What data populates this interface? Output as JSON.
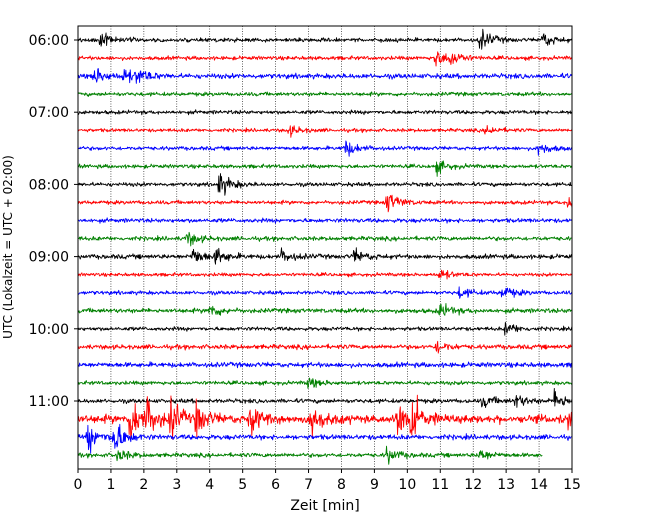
{
  "chart_data": {
    "type": "line",
    "title": "",
    "xlabel": "Zeit  [min]",
    "ylabel": "UTC (Lokalzeit = UTC + 02:00)",
    "xlim": [
      0,
      15
    ],
    "x_ticks": [
      0,
      1,
      2,
      3,
      4,
      5,
      6,
      7,
      8,
      9,
      10,
      11,
      12,
      13,
      14,
      15
    ],
    "x_tick_labels": [
      "0",
      "1",
      "2",
      "3",
      "4",
      "5",
      "6",
      "7",
      "8",
      "9",
      "10",
      "11",
      "12",
      "13",
      "14",
      "15"
    ],
    "y_ticks": [
      {
        "trace_index": 0,
        "label": "06:00"
      },
      {
        "trace_index": 4,
        "label": "07:00"
      },
      {
        "trace_index": 8,
        "label": "08:00"
      },
      {
        "trace_index": 12,
        "label": "09:00"
      },
      {
        "trace_index": 16,
        "label": "10:00"
      },
      {
        "trace_index": 20,
        "label": "11:00"
      }
    ],
    "minutes_per_trace": 15,
    "series_colors": [
      "#000000",
      "#ff0000",
      "#0000ff",
      "#008000"
    ],
    "gridlines": "vertical dotted at each minute",
    "traces": [
      {
        "start": "06:00",
        "color": "#000000",
        "end_min": 15,
        "amplitude": 1.0,
        "events": [
          {
            "t": 0.7,
            "amp": 2.0
          },
          {
            "t": 12.2,
            "amp": 3.2
          },
          {
            "t": 14.1,
            "amp": 2.4
          }
        ]
      },
      {
        "start": "06:15",
        "color": "#ff0000",
        "end_min": 15,
        "amplitude": 1.0,
        "events": [
          {
            "t": 10.8,
            "amp": 3.0
          },
          {
            "t": 11.3,
            "amp": 2.2
          }
        ]
      },
      {
        "start": "06:30",
        "color": "#0000ff",
        "end_min": 15,
        "amplitude": 1.3,
        "events": [
          {
            "t": 0.5,
            "amp": 2.4
          },
          {
            "t": 1.4,
            "amp": 2.0
          },
          {
            "t": 1.8,
            "amp": 2.0
          }
        ]
      },
      {
        "start": "06:45",
        "color": "#008000",
        "end_min": 15,
        "amplitude": 1.0,
        "events": []
      },
      {
        "start": "07:00",
        "color": "#000000",
        "end_min": 15,
        "amplitude": 1.0,
        "events": []
      },
      {
        "start": "07:15",
        "color": "#ff0000",
        "end_min": 15,
        "amplitude": 0.9,
        "events": [
          {
            "t": 6.4,
            "amp": 1.6
          },
          {
            "t": 12.4,
            "amp": 1.4
          }
        ]
      },
      {
        "start": "07:30",
        "color": "#0000ff",
        "end_min": 15,
        "amplitude": 1.0,
        "events": [
          {
            "t": 8.1,
            "amp": 2.6
          },
          {
            "t": 14.0,
            "amp": 2.0
          }
        ]
      },
      {
        "start": "07:45",
        "color": "#008000",
        "end_min": 15,
        "amplitude": 1.0,
        "events": [
          {
            "t": 10.9,
            "amp": 1.8
          }
        ]
      },
      {
        "start": "08:00",
        "color": "#000000",
        "end_min": 15,
        "amplitude": 1.0,
        "events": [
          {
            "t": 4.3,
            "amp": 3.6
          }
        ]
      },
      {
        "start": "08:15",
        "color": "#ff0000",
        "end_min": 15,
        "amplitude": 1.0,
        "events": [
          {
            "t": 9.4,
            "amp": 3.2
          },
          {
            "t": 14.9,
            "amp": 2.6
          }
        ]
      },
      {
        "start": "08:30",
        "color": "#0000ff",
        "end_min": 15,
        "amplitude": 1.1,
        "events": []
      },
      {
        "start": "08:45",
        "color": "#008000",
        "end_min": 15,
        "amplitude": 1.1,
        "events": [
          {
            "t": 3.3,
            "amp": 2.2
          }
        ]
      },
      {
        "start": "09:00",
        "color": "#000000",
        "end_min": 15,
        "amplitude": 1.2,
        "events": [
          {
            "t": 3.5,
            "amp": 2.6
          },
          {
            "t": 4.2,
            "amp": 2.2
          },
          {
            "t": 6.2,
            "amp": 1.8
          },
          {
            "t": 8.4,
            "amp": 2.0
          }
        ]
      },
      {
        "start": "09:15",
        "color": "#ff0000",
        "end_min": 15,
        "amplitude": 0.9,
        "events": [
          {
            "t": 11.0,
            "amp": 1.6
          }
        ]
      },
      {
        "start": "09:30",
        "color": "#0000ff",
        "end_min": 15,
        "amplitude": 1.0,
        "events": [
          {
            "t": 11.6,
            "amp": 1.6
          },
          {
            "t": 12.9,
            "amp": 2.0
          }
        ]
      },
      {
        "start": "09:45",
        "color": "#008000",
        "end_min": 15,
        "amplitude": 1.2,
        "events": [
          {
            "t": 4.0,
            "amp": 2.0
          },
          {
            "t": 11.0,
            "amp": 2.0
          }
        ]
      },
      {
        "start": "10:00",
        "color": "#000000",
        "end_min": 15,
        "amplitude": 1.0,
        "events": [
          {
            "t": 13.0,
            "amp": 2.0
          }
        ]
      },
      {
        "start": "10:15",
        "color": "#ff0000",
        "end_min": 15,
        "amplitude": 1.2,
        "events": [
          {
            "t": 10.9,
            "amp": 1.8
          }
        ]
      },
      {
        "start": "10:30",
        "color": "#0000ff",
        "end_min": 15,
        "amplitude": 1.3,
        "events": []
      },
      {
        "start": "10:45",
        "color": "#008000",
        "end_min": 15,
        "amplitude": 1.0,
        "events": [
          {
            "t": 7.0,
            "amp": 1.6
          }
        ]
      },
      {
        "start": "11:00",
        "color": "#000000",
        "end_min": 15,
        "amplitude": 1.1,
        "events": [
          {
            "t": 12.3,
            "amp": 1.8
          },
          {
            "t": 13.3,
            "amp": 2.0
          },
          {
            "t": 14.5,
            "amp": 3.0
          }
        ]
      },
      {
        "start": "11:15",
        "color": "#ff0000",
        "end_min": 15,
        "amplitude": 2.2,
        "events": [
          {
            "t": 1.6,
            "amp": 6.0
          },
          {
            "t": 2.1,
            "amp": 4.0
          },
          {
            "t": 2.8,
            "amp": 5.0
          },
          {
            "t": 3.6,
            "amp": 4.0
          },
          {
            "t": 5.2,
            "amp": 4.0
          },
          {
            "t": 7.1,
            "amp": 4.0
          },
          {
            "t": 9.7,
            "amp": 6.5
          },
          {
            "t": 10.1,
            "amp": 5.0
          },
          {
            "t": 14.9,
            "amp": 3.0
          }
        ]
      },
      {
        "start": "11:30",
        "color": "#0000ff",
        "end_min": 15,
        "amplitude": 1.3,
        "events": [
          {
            "t": 0.3,
            "amp": 4.0
          },
          {
            "t": 1.1,
            "amp": 5.0
          }
        ]
      },
      {
        "start": "11:45",
        "color": "#008000",
        "end_min": 14.1,
        "amplitude": 1.1,
        "events": [
          {
            "t": 1.2,
            "amp": 1.8
          },
          {
            "t": 9.4,
            "amp": 2.2
          },
          {
            "t": 12.2,
            "amp": 1.8
          }
        ]
      }
    ]
  }
}
